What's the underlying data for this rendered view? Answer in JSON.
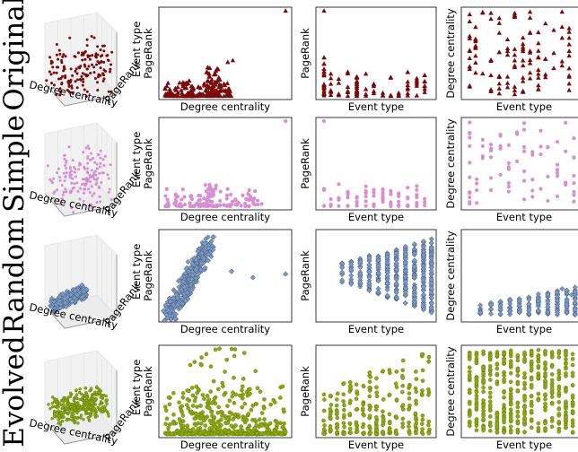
{
  "colors": {
    "Original": "#7a0a0a",
    "Simple": "#d68fd0",
    "Random": "#7f9ac0",
    "Evolved": "#8aaa10"
  },
  "labels": {
    "degree_centrality": "Degree centrality",
    "pagerank": "PageRank",
    "event_type": "Event type"
  },
  "chart_data": {
    "type": "scatter",
    "rows": [
      {
        "name": "Original",
        "marker": "triangle",
        "panels": [
          {
            "xlabel": "Degree centrality",
            "ylabel": "PageRank"
          },
          {
            "xlabel": "Event type",
            "ylabel": "PageRank"
          },
          {
            "xlabel": "Event type",
            "ylabel": "Degree centrality"
          }
        ]
      },
      {
        "name": "Simple",
        "marker": "circle",
        "panels": [
          {
            "xlabel": "Degree centrality",
            "ylabel": "PageRank"
          },
          {
            "xlabel": "Event type",
            "ylabel": "PageRank"
          },
          {
            "xlabel": "Event type",
            "ylabel": "Degree centrality"
          }
        ]
      },
      {
        "name": "Random",
        "marker": "diamond",
        "panels": [
          {
            "xlabel": "Degree centrality",
            "ylabel": "PageRank"
          },
          {
            "xlabel": "Event type",
            "ylabel": "PageRank"
          },
          {
            "xlabel": "Event type",
            "ylabel": "Degree centrality"
          }
        ]
      },
      {
        "name": "Evolved",
        "marker": "circle",
        "panels": [
          {
            "xlabel": "Degree centrality",
            "ylabel": "PageRank"
          },
          {
            "xlabel": "Event type",
            "ylabel": "PageRank"
          },
          {
            "xlabel": "Event type",
            "ylabel": "Degree centrality"
          }
        ]
      }
    ]
  }
}
